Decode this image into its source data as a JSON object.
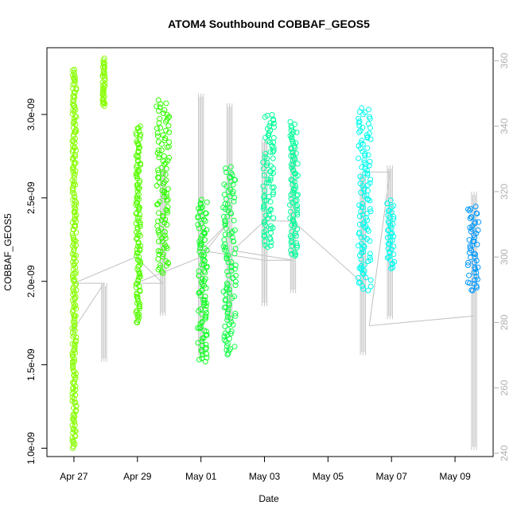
{
  "chart_data": {
    "type": "scatter",
    "title": "ATOM4 Southbound COBBAF_GEOS5",
    "xlabel": "Date",
    "ylabel": "COBBAF_GEOS5",
    "x_ticks": [
      "Apr 27",
      "Apr 29",
      "May 01",
      "May 03",
      "May 05",
      "May 07",
      "May 09"
    ],
    "y_ticks": [
      "1.0e-09",
      "1.5e-09",
      "2.0e-09",
      "2.5e-09",
      "3.0e-09"
    ],
    "y_tick_values": [
      1e-09,
      1.5e-09,
      2e-09,
      2.5e-09,
      3e-09
    ],
    "ylim": [
      9.5e-10,
      3.4e-09
    ],
    "y2_ticks": [
      "240",
      "260",
      "280",
      "300",
      "320",
      "340",
      "360"
    ],
    "y2_tick_values": [
      240,
      260,
      280,
      300,
      320,
      340,
      360
    ],
    "y2lim": [
      239,
      364
    ],
    "x_tick_days": [
      0,
      2,
      4,
      6,
      8,
      10,
      12
    ],
    "xlim_days": [
      -0.85,
      13.2
    ],
    "series": [
      {
        "day_start": -0.05,
        "day_end": 0.08,
        "ymin": 1e-09,
        "ymax": 3.27e-09,
        "color": "#88ff00"
      },
      {
        "day_start": 0.9,
        "day_end": 0.98,
        "ymin": 3.05e-09,
        "ymax": 3.33e-09,
        "color": "#88ff00"
      },
      {
        "day_start": 1.95,
        "day_end": 2.1,
        "ymin": 1.75e-09,
        "ymax": 2.93e-09,
        "color": "#55ff00"
      },
      {
        "day_start": 2.6,
        "day_end": 3.0,
        "ymin": 2.05e-09,
        "ymax": 3.08e-09,
        "color": "#33ff00"
      },
      {
        "day_start": 3.9,
        "day_end": 4.2,
        "ymin": 1.52e-09,
        "ymax": 2.49e-09,
        "color": "#11ff22"
      },
      {
        "day_start": 4.7,
        "day_end": 5.1,
        "ymin": 1.56e-09,
        "ymax": 2.68e-09,
        "color": "#11ff44"
      },
      {
        "day_start": 5.95,
        "day_end": 6.3,
        "ymin": 2.2e-09,
        "ymax": 3e-09,
        "color": "#00ff99"
      },
      {
        "day_start": 6.8,
        "day_end": 7.05,
        "ymin": 2.15e-09,
        "ymax": 2.95e-09,
        "color": "#00ff99"
      },
      {
        "day_start": 8.95,
        "day_end": 9.35,
        "ymin": 1.95e-09,
        "ymax": 3.04e-09,
        "color": "#00ffee"
      },
      {
        "day_start": 9.85,
        "day_end": 10.1,
        "ymin": 2.08e-09,
        "ymax": 2.48e-09,
        "color": "#00ffee"
      },
      {
        "day_start": 12.4,
        "day_end": 12.75,
        "ymin": 1.94e-09,
        "ymax": 2.45e-09,
        "color": "#0099ff"
      }
    ],
    "grey_series": [
      {
        "day": 0.0,
        "ymin": 278,
        "ymax": 278
      },
      {
        "day": 0.95,
        "ymin": 268,
        "ymax": 292
      },
      {
        "day": 2.8,
        "ymin": 282,
        "ymax": 328
      },
      {
        "day": 4.0,
        "ymin": 270,
        "ymax": 350
      },
      {
        "day": 4.9,
        "ymin": 280,
        "ymax": 347
      },
      {
        "day": 6.0,
        "ymin": 285,
        "ymax": 336
      },
      {
        "day": 6.9,
        "ymin": 289,
        "ymax": 334
      },
      {
        "day": 9.1,
        "ymin": 270,
        "ymax": 326
      },
      {
        "day": 9.95,
        "ymin": 281,
        "ymax": 328
      },
      {
        "day": 12.6,
        "ymin": 241,
        "ymax": 320
      }
    ],
    "grey_path": [
      [
        0.0,
        278
      ],
      [
        0.95,
        292
      ],
      [
        0.0,
        292
      ],
      [
        1.95,
        300
      ],
      [
        2.8,
        292
      ],
      [
        1.95,
        292
      ],
      [
        4.0,
        300
      ],
      [
        4.9,
        311
      ],
      [
        4.0,
        302
      ],
      [
        6.0,
        299
      ],
      [
        6.9,
        299
      ],
      [
        5.0,
        302
      ],
      [
        6.0,
        311
      ],
      [
        6.9,
        311
      ],
      [
        9.1,
        292
      ],
      [
        9.1,
        326
      ],
      [
        9.95,
        326
      ],
      [
        9.3,
        279
      ],
      [
        12.6,
        282
      ]
    ]
  }
}
